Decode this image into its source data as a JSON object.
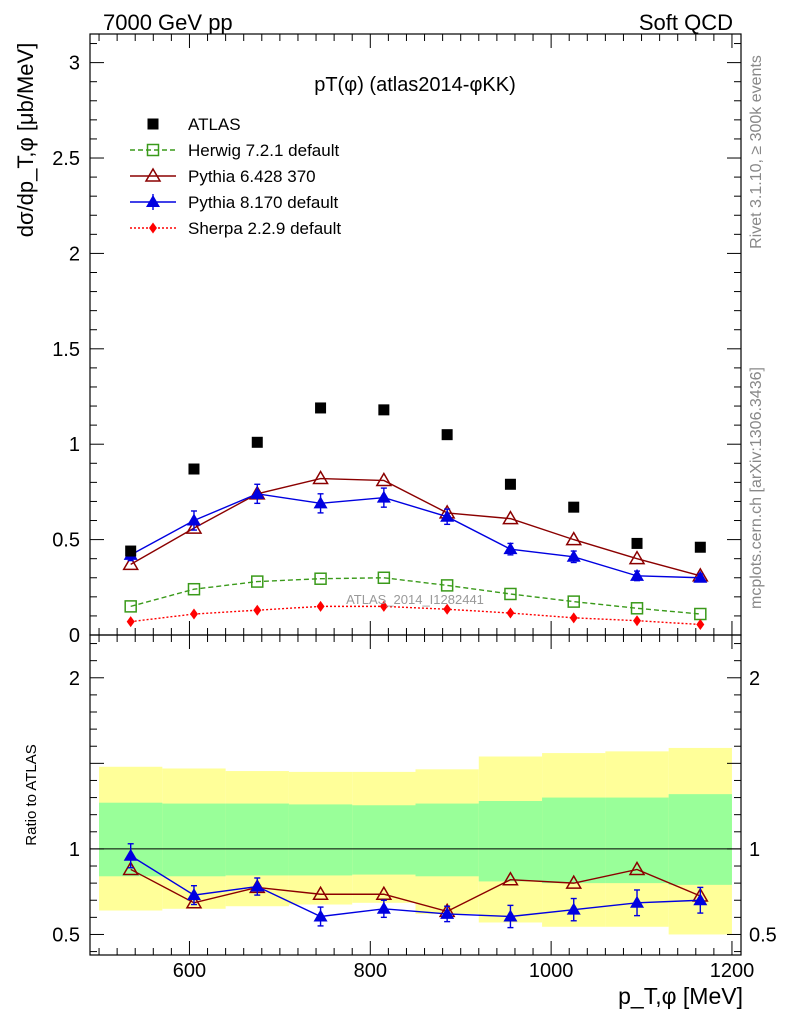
{
  "header": {
    "left": "7000 GeV pp",
    "right": "Soft QCD"
  },
  "side_labels": {
    "rivet": "Rivet 3.1.10, ≥ 300k events",
    "mcplots": "mcplots.cern.ch [arXiv:1306.3436]"
  },
  "watermark": "ATLAS_2014_I1282441",
  "chart_data": [
    {
      "type": "scatter",
      "title": "pT(φ) (atlas2014-φKK)",
      "ylabel": "dσ/dp_T,φ [μb/MeV]",
      "xlim": [
        490,
        1210
      ],
      "ylim": [
        0,
        3.15
      ],
      "yticks": [
        0,
        0.5,
        1,
        1.5,
        2,
        2.5,
        3
      ],
      "ytick_labels": [
        "0",
        "0.5",
        "1",
        "1.5",
        "2",
        "2.5",
        "3"
      ],
      "x": [
        535,
        605,
        675,
        745,
        815,
        885,
        955,
        1025,
        1095,
        1165
      ],
      "legend_position": "top-left",
      "series": [
        {
          "name": "ATLAS",
          "color": "#000000",
          "marker": "filled-square",
          "values": [
            0.44,
            0.87,
            1.01,
            1.19,
            1.18,
            1.05,
            0.79,
            0.67,
            0.48,
            0.46
          ]
        },
        {
          "name": "Herwig 7.2.1 default",
          "color": "#3a9a1a",
          "marker": "open-square",
          "line": "dashed",
          "values": [
            0.15,
            0.24,
            0.28,
            0.295,
            0.3,
            0.26,
            0.215,
            0.175,
            0.14,
            0.11
          ]
        },
        {
          "name": "Pythia 6.428 370",
          "color": "#8b0000",
          "marker": "open-triangle",
          "line": "solid",
          "values": [
            0.37,
            0.56,
            0.74,
            0.82,
            0.81,
            0.64,
            0.61,
            0.5,
            0.4,
            0.31
          ]
        },
        {
          "name": "Pythia 8.170 default",
          "color": "#0000e0",
          "marker": "filled-triangle",
          "line": "solid",
          "values": [
            0.42,
            0.6,
            0.74,
            0.69,
            0.72,
            0.62,
            0.45,
            0.41,
            0.31,
            0.3
          ],
          "errors": [
            0.03,
            0.05,
            0.05,
            0.05,
            0.05,
            0.04,
            0.03,
            0.03,
            0.025,
            0.02
          ]
        },
        {
          "name": "Sherpa 2.2.9 default",
          "color": "#ff0000",
          "marker": "filled-diamond",
          "line": "dotted",
          "values": [
            0.07,
            0.11,
            0.13,
            0.15,
            0.15,
            0.135,
            0.115,
            0.09,
            0.075,
            0.055
          ]
        }
      ]
    },
    {
      "type": "scatter",
      "ylabel": "Ratio to ATLAS",
      "xlabel": "p_T,φ [MeV]",
      "xlim": [
        490,
        1210
      ],
      "ylim": [
        0.38,
        2.25
      ],
      "yticks": [
        0.5,
        1,
        2
      ],
      "ytick_labels": [
        "0.5",
        "1",
        "2"
      ],
      "xticks": [
        600,
        800,
        1000,
        1200
      ],
      "xtick_labels": [
        "600",
        "800",
        "1000",
        "1200"
      ],
      "bin_edges": [
        500,
        570,
        640,
        710,
        780,
        850,
        920,
        990,
        1060,
        1130,
        1200
      ],
      "band_inner": {
        "color": "#99ff99",
        "low": [
          0.84,
          0.84,
          0.845,
          0.845,
          0.85,
          0.84,
          0.81,
          0.8,
          0.8,
          0.79
        ],
        "high": [
          1.27,
          1.265,
          1.265,
          1.26,
          1.255,
          1.265,
          1.28,
          1.3,
          1.3,
          1.32
        ]
      },
      "band_outer": {
        "color": "#ffff99",
        "low": [
          0.64,
          0.65,
          0.665,
          0.675,
          0.685,
          0.62,
          0.57,
          0.545,
          0.545,
          0.5
        ],
        "high": [
          1.48,
          1.47,
          1.455,
          1.45,
          1.45,
          1.465,
          1.54,
          1.56,
          1.57,
          1.59
        ]
      },
      "x": [
        535,
        605,
        675,
        745,
        815,
        885,
        955,
        1025,
        1095,
        1165
      ],
      "series": [
        {
          "name": "Pythia 6.428 370",
          "color": "#8b0000",
          "marker": "open-triangle",
          "values": [
            0.88,
            0.685,
            0.775,
            0.735,
            0.735,
            0.635,
            0.82,
            0.8,
            0.88,
            0.725
          ]
        },
        {
          "name": "Pythia 8.170 default",
          "color": "#0000e0",
          "marker": "filled-triangle",
          "values": [
            0.96,
            0.73,
            0.78,
            0.605,
            0.65,
            0.62,
            0.605,
            0.645,
            0.685,
            0.7
          ],
          "errors": [
            0.07,
            0.055,
            0.05,
            0.055,
            0.05,
            0.045,
            0.065,
            0.065,
            0.075,
            0.075
          ]
        }
      ]
    }
  ]
}
